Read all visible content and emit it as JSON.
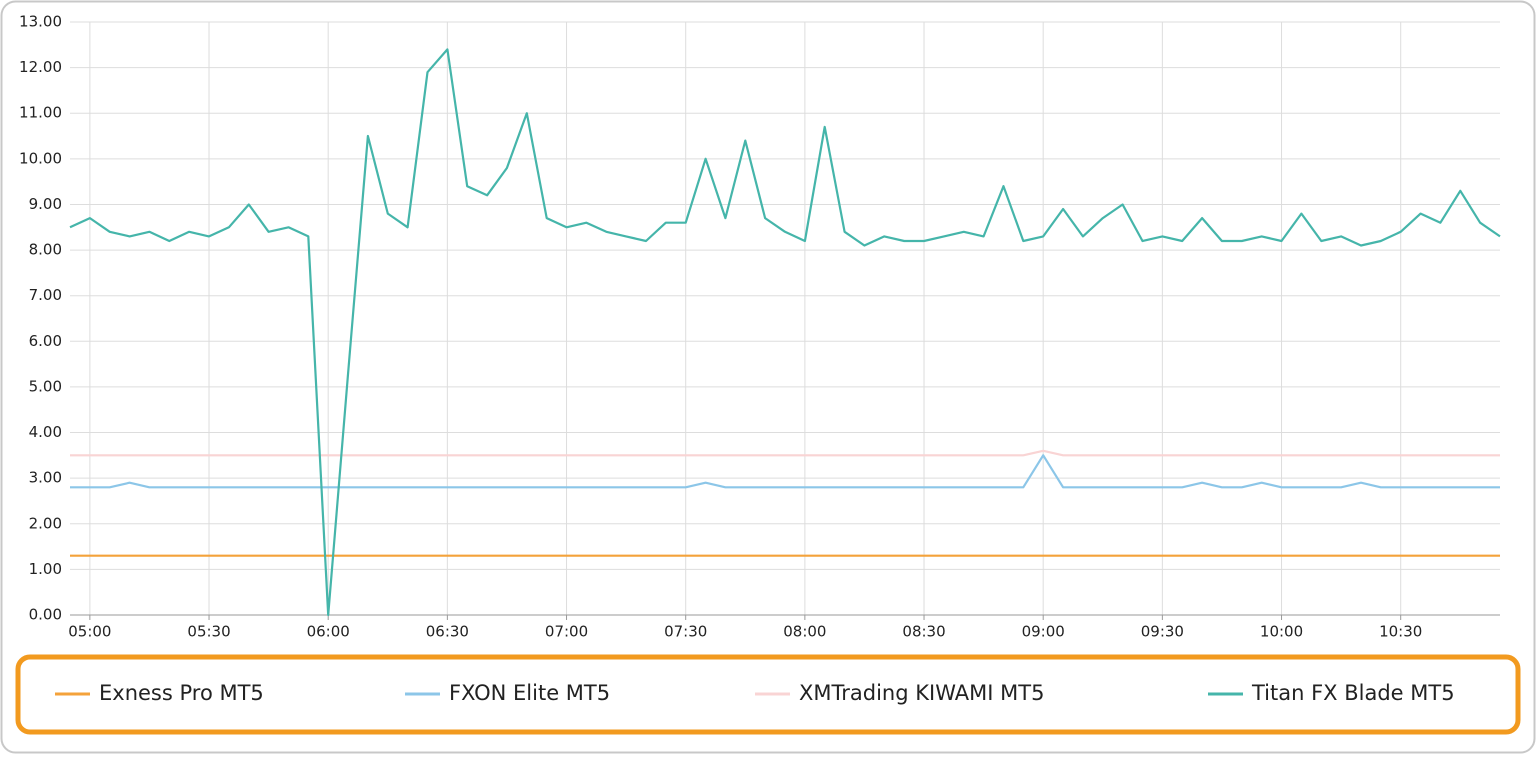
{
  "chart_data": {
    "type": "line",
    "x": [
      "04:55",
      "05:00",
      "05:05",
      "05:10",
      "05:15",
      "05:20",
      "05:25",
      "05:30",
      "05:35",
      "05:40",
      "05:45",
      "05:50",
      "05:55",
      "06:00",
      "06:05",
      "06:10",
      "06:15",
      "06:20",
      "06:25",
      "06:30",
      "06:35",
      "06:40",
      "06:45",
      "06:50",
      "06:55",
      "07:00",
      "07:05",
      "07:10",
      "07:15",
      "07:20",
      "07:25",
      "07:30",
      "07:35",
      "07:40",
      "07:45",
      "07:50",
      "07:55",
      "08:00",
      "08:05",
      "08:10",
      "08:15",
      "08:20",
      "08:25",
      "08:30",
      "08:35",
      "08:40",
      "08:45",
      "08:50",
      "08:55",
      "09:00",
      "09:05",
      "09:10",
      "09:15",
      "09:20",
      "09:25",
      "09:30",
      "09:35",
      "09:40",
      "09:45",
      "09:50",
      "09:55",
      "10:00",
      "10:05",
      "10:10",
      "10:15",
      "10:20",
      "10:25",
      "10:30",
      "10:35",
      "10:40",
      "10:45",
      "10:50",
      "10:55"
    ],
    "series": [
      {
        "name": "Exness Pro MT5",
        "color": "#f4a23a",
        "values": [
          1.3,
          1.3,
          1.3,
          1.3,
          1.3,
          1.3,
          1.3,
          1.3,
          1.3,
          1.3,
          1.3,
          1.3,
          1.3,
          1.3,
          1.3,
          1.3,
          1.3,
          1.3,
          1.3,
          1.3,
          1.3,
          1.3,
          1.3,
          1.3,
          1.3,
          1.3,
          1.3,
          1.3,
          1.3,
          1.3,
          1.3,
          1.3,
          1.3,
          1.3,
          1.3,
          1.3,
          1.3,
          1.3,
          1.3,
          1.3,
          1.3,
          1.3,
          1.3,
          1.3,
          1.3,
          1.3,
          1.3,
          1.3,
          1.3,
          1.3,
          1.3,
          1.3,
          1.3,
          1.3,
          1.3,
          1.3,
          1.3,
          1.3,
          1.3,
          1.3,
          1.3,
          1.3,
          1.3,
          1.3,
          1.3,
          1.3,
          1.3,
          1.3,
          1.3,
          1.3,
          1.3,
          1.3,
          1.3
        ]
      },
      {
        "name": "FXON Elite MT5",
        "color": "#8cc6e8",
        "values": [
          2.8,
          2.8,
          2.8,
          2.9,
          2.8,
          2.8,
          2.8,
          2.8,
          2.8,
          2.8,
          2.8,
          2.8,
          2.8,
          2.8,
          2.8,
          2.8,
          2.8,
          2.8,
          2.8,
          2.8,
          2.8,
          2.8,
          2.8,
          2.8,
          2.8,
          2.8,
          2.8,
          2.8,
          2.8,
          2.8,
          2.8,
          2.8,
          2.9,
          2.8,
          2.8,
          2.8,
          2.8,
          2.8,
          2.8,
          2.8,
          2.8,
          2.8,
          2.8,
          2.8,
          2.8,
          2.8,
          2.8,
          2.8,
          2.8,
          3.5,
          2.8,
          2.8,
          2.8,
          2.8,
          2.8,
          2.8,
          2.8,
          2.9,
          2.8,
          2.8,
          2.9,
          2.8,
          2.8,
          2.8,
          2.8,
          2.9,
          2.8,
          2.8,
          2.8,
          2.8,
          2.8,
          2.8,
          2.8
        ]
      },
      {
        "name": "XMTrading KIWAMI MT5",
        "color": "#f9d4d4",
        "values": [
          3.5,
          3.5,
          3.5,
          3.5,
          3.5,
          3.5,
          3.5,
          3.5,
          3.5,
          3.5,
          3.5,
          3.5,
          3.5,
          3.5,
          3.5,
          3.5,
          3.5,
          3.5,
          3.5,
          3.5,
          3.5,
          3.5,
          3.5,
          3.5,
          3.5,
          3.5,
          3.5,
          3.5,
          3.5,
          3.5,
          3.5,
          3.5,
          3.5,
          3.5,
          3.5,
          3.5,
          3.5,
          3.5,
          3.5,
          3.5,
          3.5,
          3.5,
          3.5,
          3.5,
          3.5,
          3.5,
          3.5,
          3.5,
          3.5,
          3.6,
          3.5,
          3.5,
          3.5,
          3.5,
          3.5,
          3.5,
          3.5,
          3.5,
          3.5,
          3.5,
          3.5,
          3.5,
          3.5,
          3.5,
          3.5,
          3.5,
          3.5,
          3.5,
          3.5,
          3.5,
          3.5,
          3.5,
          3.5
        ]
      },
      {
        "name": "Titan FX Blade MT5",
        "color": "#45b5aa",
        "values": [
          8.5,
          8.7,
          8.4,
          8.3,
          8.4,
          8.2,
          8.4,
          8.3,
          8.5,
          9.0,
          8.4,
          8.5,
          8.3,
          0.0,
          5.3,
          10.5,
          8.8,
          8.5,
          11.9,
          12.4,
          9.4,
          9.2,
          9.8,
          11.0,
          8.7,
          8.5,
          8.6,
          8.4,
          8.3,
          8.2,
          8.6,
          8.6,
          10.0,
          8.7,
          10.4,
          8.7,
          8.4,
          8.2,
          10.7,
          8.4,
          8.1,
          8.3,
          8.2,
          8.2,
          8.3,
          8.4,
          8.3,
          9.4,
          8.2,
          8.3,
          8.9,
          8.3,
          8.7,
          9.0,
          8.2,
          8.3,
          8.2,
          8.7,
          8.2,
          8.2,
          8.3,
          8.2,
          8.8,
          8.2,
          8.3,
          8.1,
          8.2,
          8.4,
          8.8,
          8.6,
          9.3,
          8.6,
          8.3
        ]
      }
    ],
    "xticks": [
      "05:00",
      "05:30",
      "06:00",
      "06:30",
      "07:00",
      "07:30",
      "08:00",
      "08:30",
      "09:00",
      "09:30",
      "10:00",
      "10:30"
    ],
    "ylim": [
      0,
      13
    ],
    "yticks": [
      {
        "value": 0,
        "label": "0.00"
      },
      {
        "value": 1,
        "label": "1.00"
      },
      {
        "value": 2,
        "label": "2.00"
      },
      {
        "value": 3,
        "label": "3.00"
      },
      {
        "value": 4,
        "label": "4.00"
      },
      {
        "value": 5,
        "label": "5.00"
      },
      {
        "value": 6,
        "label": "6.00"
      },
      {
        "value": 7,
        "label": "7.00"
      },
      {
        "value": 8,
        "label": "8.00"
      },
      {
        "value": 9,
        "label": "9.00"
      },
      {
        "value": 10,
        "label": "10.00"
      },
      {
        "value": 11,
        "label": "11.00"
      },
      {
        "value": 12,
        "label": "12.00"
      },
      {
        "value": 13,
        "label": "13.00"
      }
    ],
    "grid": true
  }
}
